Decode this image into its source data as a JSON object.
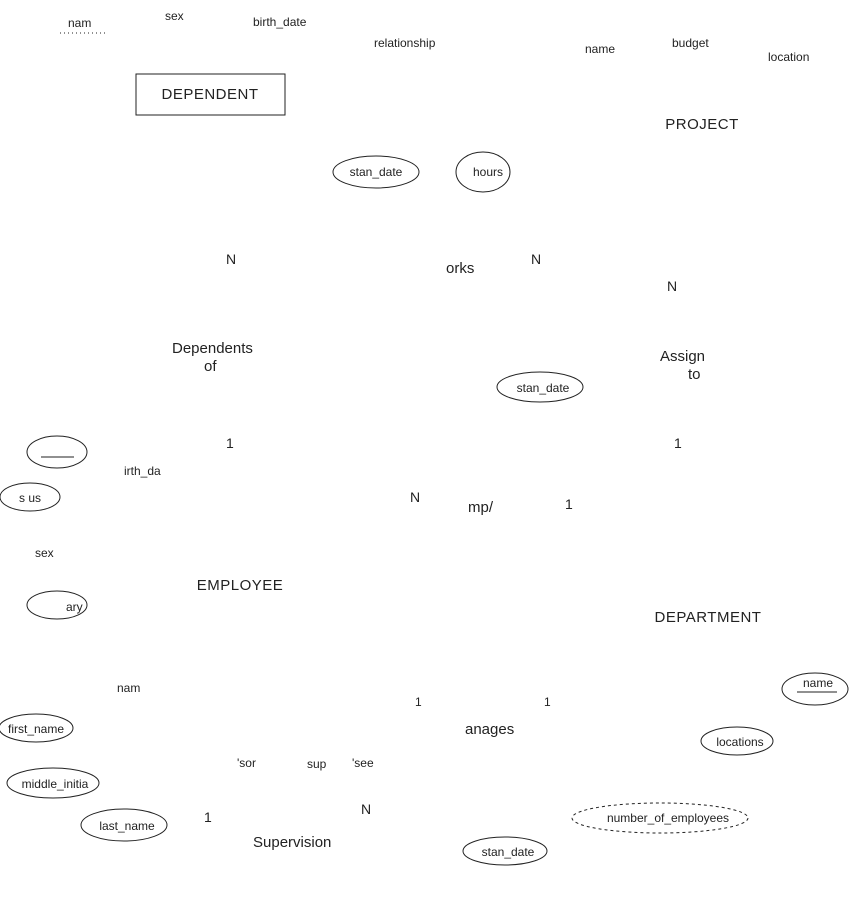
{
  "entities": {
    "dependent": "DEPENDENT",
    "project": "PROJECT",
    "employee": "EMPLOYEE",
    "department": "DEPARTMENT"
  },
  "relationships": {
    "dependents_of_1": "Dependents",
    "dependents_of_2": "of",
    "works_on": "orks",
    "assign_to_1": "Assign",
    "assign_to_2": "to",
    "works_for": "mp/",
    "manages": "anages",
    "supervision": "Supervision"
  },
  "attributes": {
    "dep_name": "nam",
    "dep_sex": "sex",
    "dep_birth_date": "birth_date",
    "dep_relationship": "relationship",
    "proj_name": "name",
    "proj_budget": "budget",
    "proj_location": "location",
    "works_start_date": "stan_date",
    "works_hours": "hours",
    "assign_start_date": "stan_date",
    "emp_underline_attr": "____",
    "emp_birth_date": "irth_da",
    "emp_status": "s us",
    "emp_sex": "sex",
    "emp_salary": "ary",
    "emp_name": "nam",
    "emp_first_name": "first_name",
    "emp_middle_initial": "middle_initia",
    "emp_last_name": "last_name",
    "dept_name": "name",
    "dept_locations": "locations",
    "dept_num_employees": "number_of_employees",
    "manages_start_date": "stan_date"
  },
  "cardinalities": {
    "dependents_n": "N",
    "dependents_1": "1",
    "works_on_n1": "N",
    "works_on_n2": "N",
    "assign_1": "1",
    "works_for_n": "N",
    "works_for_1": "1",
    "manages_1a": "1",
    "manages_1b": "1",
    "supervision_1": "1",
    "supervision_n": "N"
  },
  "roles": {
    "supervisor": "'sor",
    "sup": "sup",
    "supervisee": "'see"
  }
}
